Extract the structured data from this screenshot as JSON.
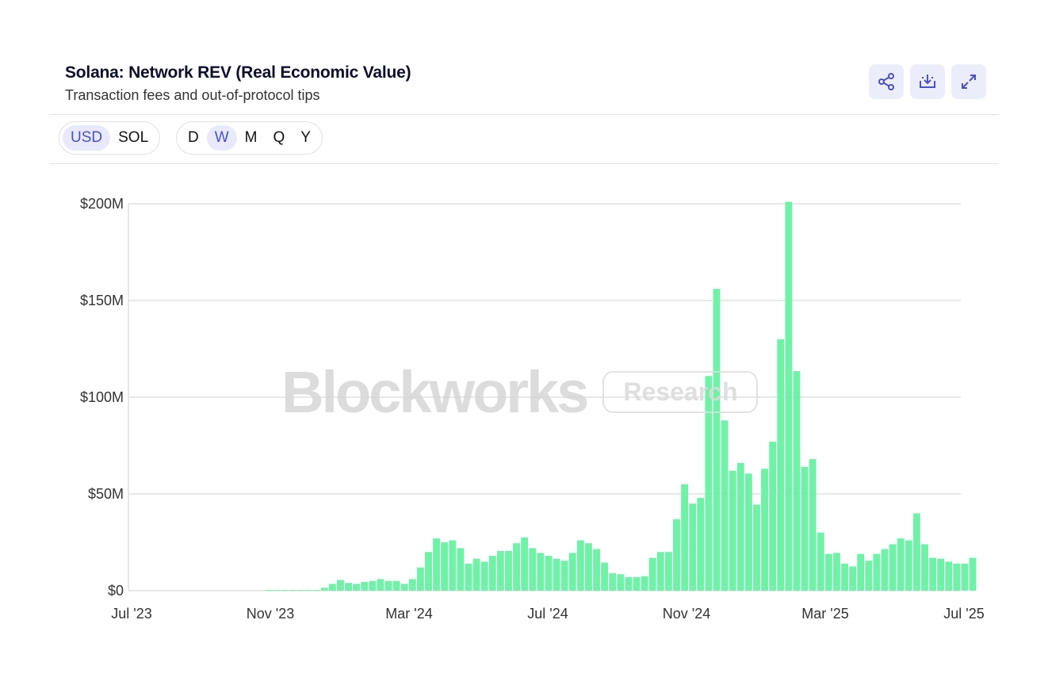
{
  "header": {
    "title": "Solana: Network REV (Real Economic Value)",
    "subtitle": "Transaction fees and out-of-protocol tips"
  },
  "actions": {
    "share": "share-icon",
    "download": "download-icon",
    "expand": "expand-icon"
  },
  "currency_toggle": [
    {
      "label": "USD",
      "active": true
    },
    {
      "label": "SOL",
      "active": false
    }
  ],
  "period_toggle": [
    {
      "label": "D",
      "active": false
    },
    {
      "label": "W",
      "active": true
    },
    {
      "label": "M",
      "active": false
    },
    {
      "label": "Q",
      "active": false
    },
    {
      "label": "Y",
      "active": false
    }
  ],
  "watermark": {
    "main": "Blockworks",
    "badge": "Research"
  },
  "colors": {
    "bar": "#6ff2a8",
    "accent": "#4b50c8",
    "accent_bg": "#e8e9fb",
    "grid": "#e0e0e0"
  },
  "chart_data": {
    "type": "bar",
    "x_start": "Jul '23",
    "x_end": "Jul '25",
    "xtick_labels": [
      "Jul '23",
      "Nov '23",
      "Mar '24",
      "Jul '24",
      "Nov '24",
      "Mar '25",
      "Jul '25"
    ],
    "ytick_labels": [
      "$0",
      "$50M",
      "$100M",
      "$150M",
      "$200M"
    ],
    "ylim": [
      0,
      200
    ],
    "y_unit": "USD millions",
    "grid": true,
    "first_bar_week": 17,
    "values": [
      0.4,
      0.4,
      0.4,
      0.4,
      0.4,
      0.4,
      0.4,
      1.5,
      3.5,
      5.5,
      4,
      3.5,
      4.5,
      5,
      6,
      5,
      5,
      3.5,
      6,
      12,
      20,
      27,
      25,
      26,
      22,
      14,
      16.5,
      15,
      18,
      20.5,
      20.5,
      24.5,
      27.5,
      22,
      19.5,
      18,
      16.5,
      15.5,
      19.5,
      26,
      24.5,
      21.5,
      14.5,
      9,
      8.5,
      7,
      7,
      7.5,
      17,
      20,
      20,
      37,
      55,
      45,
      48,
      111,
      156,
      88,
      62,
      66,
      60.5,
      44.5,
      63,
      77,
      130,
      201,
      113.5,
      64,
      68,
      30,
      19,
      19.5,
      14,
      12.5,
      19,
      15.5,
      19,
      21.5,
      24,
      27,
      26,
      40,
      24,
      17,
      16.5,
      15,
      14,
      14,
      17
    ]
  }
}
